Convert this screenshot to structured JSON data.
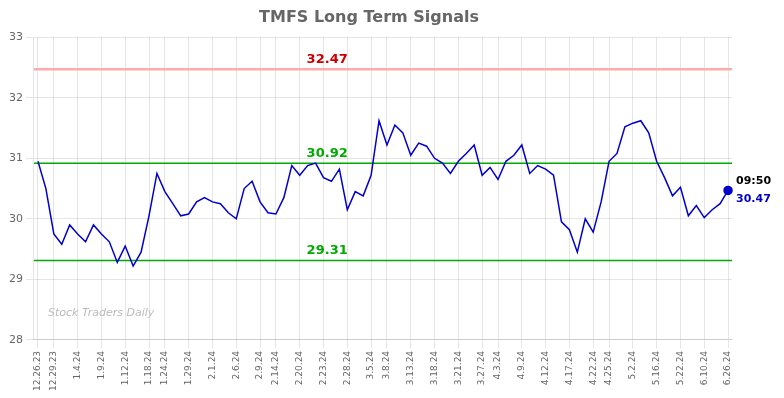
{
  "chart_data": {
    "type": "line",
    "title": "TMFS Long Term Signals",
    "categories": [
      "12.26.23",
      null,
      "12.29.23",
      null,
      null,
      "1.4.24",
      null,
      null,
      "1.9.24",
      null,
      null,
      "1.12.24",
      null,
      null,
      "1.18.24",
      null,
      "1.24.24",
      null,
      null,
      "1.29.24",
      null,
      null,
      "2.1.24",
      null,
      null,
      "2.6.24",
      null,
      null,
      "2.9.24",
      null,
      "2.14.24",
      null,
      null,
      "2.20.24",
      null,
      null,
      "2.23.24",
      null,
      null,
      "2.28.24",
      null,
      null,
      "3.5.24",
      null,
      "3.8.24",
      null,
      null,
      "3.13.24",
      null,
      null,
      "3.18.24",
      null,
      null,
      "3.21.24",
      null,
      null,
      "3.27.24",
      null,
      "4.3.24",
      null,
      null,
      "4.9.24",
      null,
      null,
      "4.12.24",
      null,
      null,
      "4.17.24",
      null,
      null,
      "4.22.24",
      null,
      "4.25.24",
      null,
      null,
      "5.2.24",
      null,
      null,
      "5.16.24",
      null,
      null,
      "5.22.24",
      null,
      null,
      "6.10.24",
      null,
      null,
      "6.26.24"
    ],
    "values": [
      30.95,
      30.5,
      29.75,
      29.58,
      29.9,
      29.75,
      29.62,
      29.9,
      29.75,
      29.62,
      29.28,
      29.55,
      29.22,
      29.45,
      30.05,
      30.75,
      30.45,
      30.25,
      30.05,
      30.08,
      30.28,
      30.35,
      30.28,
      30.25,
      30.1,
      30.0,
      30.5,
      30.62,
      30.28,
      30.1,
      30.08,
      30.35,
      30.88,
      30.72,
      30.88,
      30.92,
      30.68,
      30.62,
      30.82,
      30.15,
      30.45,
      30.38,
      30.72,
      31.62,
      31.22,
      31.55,
      31.42,
      31.05,
      31.25,
      31.2,
      31.0,
      30.92,
      30.75,
      30.95,
      31.08,
      31.22,
      30.72,
      30.85,
      30.65,
      30.95,
      31.05,
      31.22,
      30.75,
      30.88,
      30.82,
      30.72,
      29.95,
      29.82,
      29.45,
      30.0,
      29.78,
      30.28,
      30.95,
      31.08,
      31.52,
      31.58,
      31.62,
      31.42,
      30.95,
      30.68,
      30.38,
      30.52,
      30.05,
      30.22,
      30.02,
      30.15,
      30.25,
      30.47
    ],
    "color": "#0000cc",
    "annotations": [
      {
        "text": "32.47",
        "y": 32.47,
        "color": "#cc0000",
        "line_color": "#ffaaaa"
      },
      {
        "text": "30.92",
        "y": 30.92,
        "color": "#00aa00",
        "line_color": "#00aa00"
      },
      {
        "text": "29.31",
        "y": 29.31,
        "color": "#00aa00",
        "line_color": "#00aa00"
      }
    ],
    "end_labels": [
      "09:50",
      "30.47"
    ],
    "watermark": "Stock Traders Daily",
    "ylim": [
      28.0,
      33.0
    ],
    "yticks": [
      28,
      29,
      30,
      31,
      32,
      33
    ],
    "grid": true
  }
}
